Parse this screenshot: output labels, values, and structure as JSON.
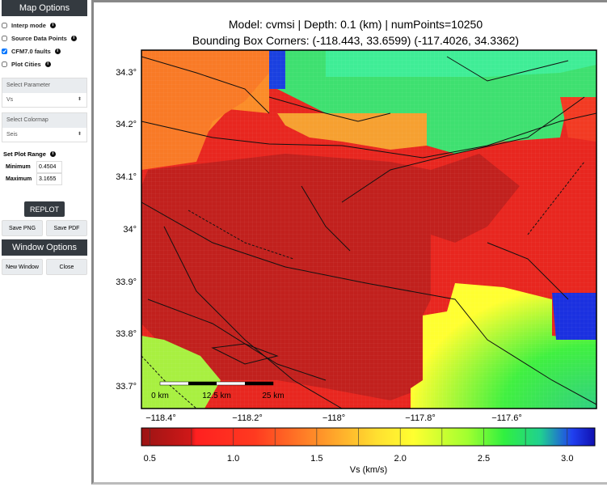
{
  "sidebar": {
    "map_options_title": "Map Options",
    "checkboxes": [
      {
        "label": "Interp mode",
        "checked": false
      },
      {
        "label": "Source Data Points",
        "checked": false
      },
      {
        "label": "CFM7.0 faults",
        "checked": true
      },
      {
        "label": "Plot Cities",
        "checked": false
      }
    ],
    "parameter": {
      "label": "Select Parameter",
      "value": "Vs"
    },
    "colormap": {
      "label": "Select Colormap",
      "value": "Seis"
    },
    "range": {
      "title": "Set Plot Range",
      "min_label": "Minimum",
      "min_value": "0.4504",
      "max_label": "Maximum",
      "max_value": "3.1655"
    },
    "replot_label": "REPLOT",
    "save_png_label": "Save PNG",
    "save_pdf_label": "Save PDF",
    "window_options_title": "Window Options",
    "new_window_label": "New Window",
    "close_label": "Close"
  },
  "plot": {
    "title_line1": "Model: cvmsi | Depth: 0.1 (km) | numPoints=10250",
    "title_line2": "Bounding Box Corners: (-118.443, 33.6599) (-117.4026, 34.3362)",
    "y_ticks": [
      "34.3°",
      "34.2°",
      "34.1°",
      "34°",
      "33.9°",
      "33.8°",
      "33.7°"
    ],
    "x_ticks": [
      "−118.4°",
      "−118.2°",
      "−118°",
      "−117.8°",
      "−117.6°"
    ],
    "scale_labels": [
      "0 km",
      "12.5 km",
      "25 km"
    ],
    "colorbar": {
      "label": "Vs (km/s)",
      "ticks": [
        "0.5",
        "1.0",
        "1.5",
        "2.0",
        "2.5",
        "3.0"
      ],
      "tick_values": [
        0.5,
        1.0,
        1.5,
        2.0,
        2.5,
        3.0
      ],
      "range": [
        0.4504,
        3.1655
      ],
      "colors": [
        "#9b1414",
        "#ff2020",
        "#ff7a28",
        "#ffd030",
        "#ffff30",
        "#70ff30",
        "#30f060",
        "#1080d0",
        "#1010c0"
      ]
    }
  }
}
